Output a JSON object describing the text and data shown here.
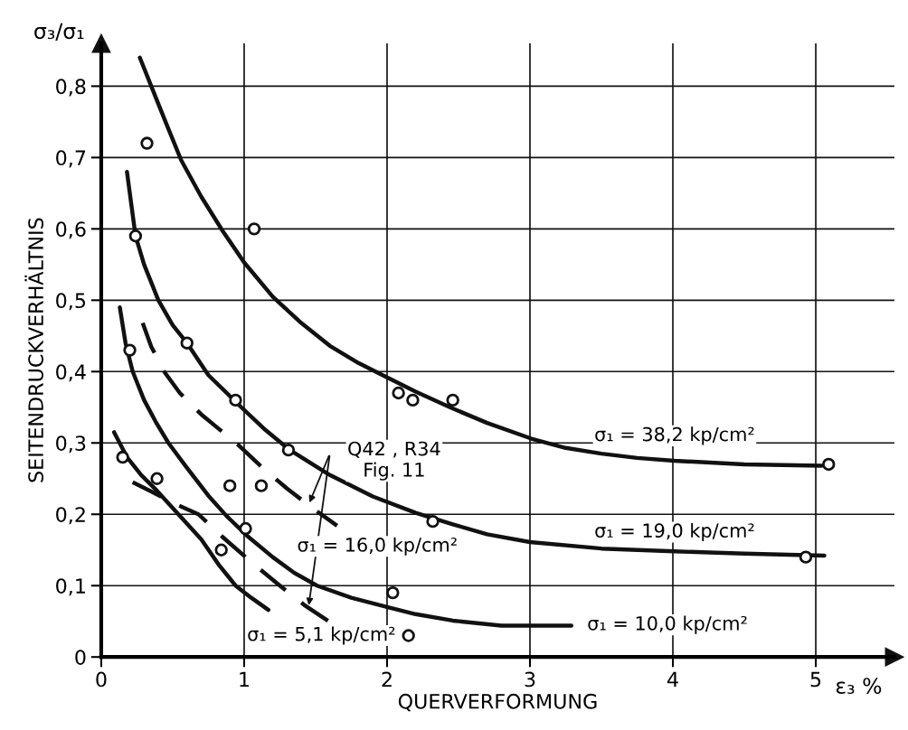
{
  "chart_data": {
    "type": "line",
    "xlabel": "QUERVERFORMUNG",
    "ylabel": "SEITENDRUCKVERHÄLTNIS",
    "xlim": [
      0,
      5.55
    ],
    "ylim": [
      0,
      0.86
    ],
    "xticks": [
      0,
      1,
      2,
      3,
      4,
      5
    ],
    "yticks": [
      0,
      {
        "value": 0.1,
        "label": "0,1"
      },
      {
        "value": 0.2,
        "label": "0,2"
      },
      {
        "value": 0.3,
        "label": "0,3"
      },
      {
        "value": 0.4,
        "label": "0,4"
      },
      {
        "value": 0.5,
        "label": "0,5"
      },
      {
        "value": 0.6,
        "label": "0,6"
      },
      {
        "value": 0.7,
        "label": "0,7"
      },
      {
        "value": 0.8,
        "label": "0,8"
      }
    ],
    "grid": true,
    "marker": "none",
    "line_style": "solid",
    "series": [
      {
        "color": "#111111",
        "x": [
          0.27,
          0.35,
          0.45,
          0.56,
          0.7,
          0.85,
          1.0,
          1.2,
          1.4,
          1.6,
          1.8,
          1.95,
          2.2,
          2.44,
          2.7,
          3.01,
          3.25,
          3.5,
          3.75,
          4.01,
          4.5,
          5.04
        ],
        "values": [
          0.84,
          0.8,
          0.75,
          0.696,
          0.645,
          0.597,
          0.553,
          0.505,
          0.468,
          0.436,
          0.412,
          0.397,
          0.372,
          0.35,
          0.328,
          0.306,
          0.293,
          0.285,
          0.279,
          0.275,
          0.27,
          0.268
        ]
      },
      {
        "color": "#111111",
        "x": [
          0.18,
          0.21,
          0.24,
          0.3,
          0.4,
          0.5,
          0.6,
          0.75,
          0.98,
          1.15,
          1.32,
          1.6,
          1.9,
          2.2,
          2.46,
          2.7,
          3.0,
          3.5,
          4.01,
          4.5,
          5.06
        ],
        "values": [
          0.68,
          0.635,
          0.59,
          0.55,
          0.5,
          0.465,
          0.44,
          0.395,
          0.35,
          0.318,
          0.29,
          0.255,
          0.225,
          0.202,
          0.186,
          0.172,
          0.161,
          0.152,
          0.148,
          0.145,
          0.142
        ]
      },
      {
        "color": "#111111",
        "x": [
          0.13,
          0.17,
          0.22,
          0.3,
          0.38,
          0.47,
          0.6,
          0.75,
          0.88,
          1.02,
          1.2,
          1.35,
          1.51,
          1.75,
          2.0,
          2.2,
          2.46,
          2.8,
          3.29
        ],
        "values": [
          0.49,
          0.44,
          0.4,
          0.36,
          0.33,
          0.3,
          0.265,
          0.226,
          0.197,
          0.17,
          0.14,
          0.118,
          0.1,
          0.083,
          0.07,
          0.06,
          0.051,
          0.044,
          0.044
        ]
      },
      {
        "color": "#111111",
        "line_style": "dashed",
        "x": [
          0.29,
          0.35,
          0.44,
          0.55,
          0.7,
          0.96,
          1.13,
          1.3,
          1.47,
          1.65
        ],
        "values": [
          0.468,
          0.435,
          0.4,
          0.37,
          0.34,
          0.297,
          0.265,
          0.236,
          0.21,
          0.184
        ]
      },
      {
        "color": "#111111",
        "x": [
          0.09,
          0.18,
          0.28,
          0.39,
          0.54,
          0.7,
          0.82,
          0.94,
          1.05,
          1.17
        ],
        "values": [
          0.315,
          0.28,
          0.255,
          0.233,
          0.2,
          0.165,
          0.13,
          0.1,
          0.083,
          0.066
        ]
      },
      {
        "color": "#111111",
        "line_style": "dashed",
        "x": [
          0.22,
          0.35,
          0.5,
          0.68,
          0.85,
          1.05,
          1.25,
          1.42,
          1.6
        ],
        "values": [
          0.245,
          0.232,
          0.216,
          0.2,
          0.168,
          0.133,
          0.1,
          0.073,
          0.049
        ]
      },
      {
        "type": "scatter",
        "color": "#111111",
        "marker": "circle",
        "x": [
          0.32,
          1.07,
          0.24,
          0.6,
          0.94,
          1.31,
          0.2,
          0.15,
          0.39,
          0.9,
          1.12,
          0.84,
          1.01,
          2.04,
          2.15,
          2.32,
          2.08,
          2.18,
          2.46,
          5.09,
          4.93
        ],
        "values": [
          0.72,
          0.6,
          0.59,
          0.44,
          0.36,
          0.29,
          0.43,
          0.28,
          0.25,
          0.24,
          0.24,
          0.15,
          0.18,
          0.09,
          0.03,
          0.19,
          0.37,
          0.36,
          0.36,
          0.27,
          0.14
        ]
      }
    ],
    "annotations": [
      "σ₃/σ₁",
      "ε₃ %",
      "σ₁ = 38,2 kp/cm²",
      "σ₁ = 19,0 kp/cm²",
      "σ₁ = 10,0 kp/cm²",
      "σ₁ = 16,0 kp/cm²",
      "σ₁ = 5,1 kp/cm²",
      {
        "text": "Q42 , R34\nFig. 11",
        "x": 1.45,
        "y": 0.21
      }
    ]
  }
}
